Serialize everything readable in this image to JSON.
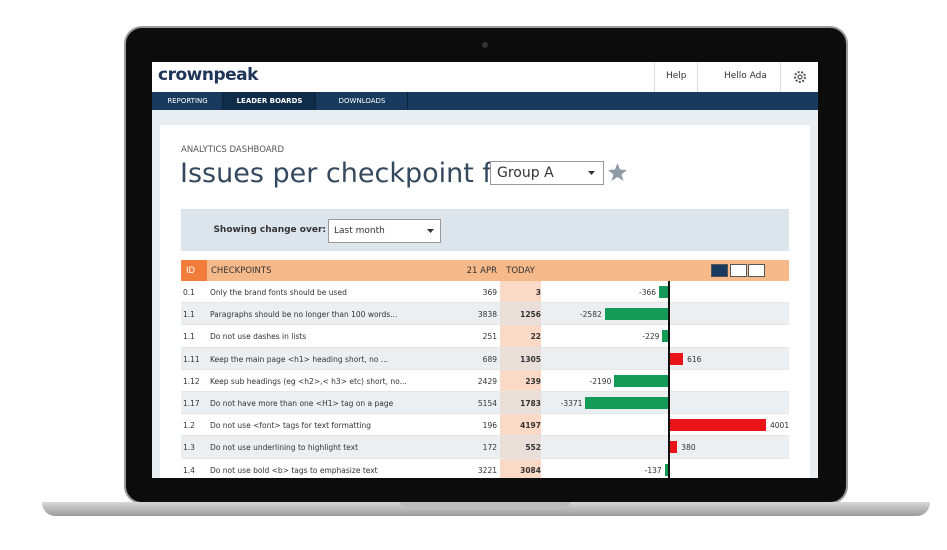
{
  "header": {
    "logo": "crownpeak",
    "help": "Help",
    "user": "Hello Ada"
  },
  "nav": [
    "REPORTING",
    "LEADER BOARDS",
    "DOWNLOADS"
  ],
  "page": {
    "breadcrumb": "ANALYTICS DASHBOARD",
    "title": "Issues per checkpoint for",
    "group": "Group A"
  },
  "filter": {
    "label": "Showing change over:",
    "period": "Last month"
  },
  "table": {
    "columns": {
      "id": "ID",
      "checkpoint": "CHECKPOINTS",
      "apr": "21 APR",
      "today": "TODAY"
    },
    "rows": [
      {
        "id": "0.1",
        "checkpoint": "Only the brand fonts should be used",
        "apr": 369,
        "today": 3,
        "change": -366
      },
      {
        "id": "1.1",
        "checkpoint": "Paragraphs should be no longer than 100 words...",
        "apr": 3838,
        "today": 1256,
        "change": -2582
      },
      {
        "id": "1.1",
        "checkpoint": "Do not use dashes in lists",
        "apr": 251,
        "today": 22,
        "change": -229
      },
      {
        "id": "1.11",
        "checkpoint": "Keep the main page <h1> heading short, no ...",
        "apr": 689,
        "today": 1305,
        "change": 616
      },
      {
        "id": "1.12",
        "checkpoint": "Keep sub headings (eg <h2>,< h3> etc) short, no...",
        "apr": 2429,
        "today": 239,
        "change": -2190
      },
      {
        "id": "1.17",
        "checkpoint": "Do not have more than one <H1> tag on a page",
        "apr": 5154,
        "today": 1783,
        "change": -3371
      },
      {
        "id": "1.2",
        "checkpoint": "Do not use <font> tags for text formatting",
        "apr": 196,
        "today": 4197,
        "change": 4001
      },
      {
        "id": "1.3",
        "checkpoint": "Do not use underlining to highlight text",
        "apr": 172,
        "today": 552,
        "change": 380
      },
      {
        "id": "1.4",
        "checkpoint": "Do not use bold <b> tags to emphasize text",
        "apr": 3221,
        "today": 3084,
        "change": -137
      }
    ]
  }
}
